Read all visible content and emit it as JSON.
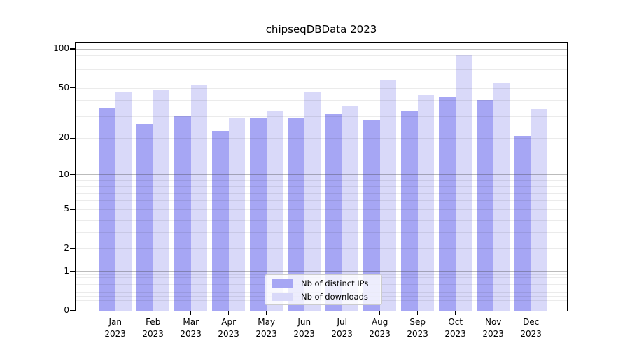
{
  "title": "chipseqDBData 2023",
  "chart_data": {
    "type": "bar",
    "title": "chipseqDBData 2023",
    "categories": [
      "Jan",
      "Feb",
      "Mar",
      "Apr",
      "May",
      "Jun",
      "Jul",
      "Aug",
      "Sep",
      "Oct",
      "Nov",
      "Dec"
    ],
    "year_label": "2023",
    "series": [
      {
        "name": "Nb of distinct IPs",
        "color": "#a6a6f4",
        "values": [
          35,
          26,
          30,
          23,
          29,
          29,
          31,
          28,
          33,
          42,
          40,
          21
        ]
      },
      {
        "name": "Nb of downloads",
        "color": "#d9d9f9",
        "values": [
          46,
          48,
          52,
          29,
          33,
          46,
          36,
          57,
          44,
          90,
          54,
          34
        ]
      }
    ],
    "yscale": "log1p",
    "ylim": [
      0,
      113
    ],
    "ytick_values": [
      0,
      1,
      2,
      5,
      10,
      20,
      50,
      100
    ],
    "ytick_labels": [
      "0",
      "1",
      "2",
      "5",
      "10",
      "20",
      "50",
      "100"
    ],
    "grid": true,
    "grid_major_at": [
      1,
      10,
      100
    ],
    "legend_position": "lower center"
  },
  "colors": {
    "background": "#ffffff",
    "spine": "#000000",
    "grid_major": "rgba(60,60,60,0.35)",
    "grid_minor": "rgba(0,0,0,0.08)",
    "legend_border": "#cccccc",
    "text": "#000000"
  }
}
